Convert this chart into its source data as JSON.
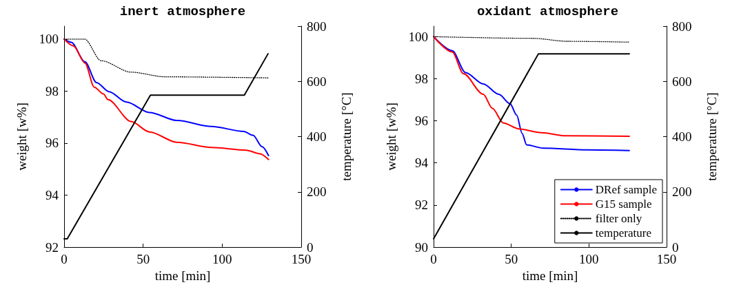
{
  "chart_data": [
    {
      "type": "line",
      "title": "inert atmosphere",
      "xlabel": "time [min]",
      "ylabel": "weight [w%]",
      "y2label": "temperature [°C]",
      "xlim": [
        0,
        150
      ],
      "xticks": [
        0,
        50,
        100,
        150
      ],
      "ylim": [
        92,
        100.5
      ],
      "yticks": [
        92,
        94,
        96,
        98,
        100
      ],
      "y2lim": [
        0,
        800
      ],
      "y2ticks": [
        0,
        200,
        400,
        600,
        800
      ],
      "grid": false,
      "legend": false,
      "marker": "none",
      "series": [
        {
          "color": "#0000ff",
          "line_style": "solid",
          "x": [
            0,
            4.5,
            13.2,
            20.5,
            28.4,
            39.4,
            54,
            71.5,
            93.3,
            113.7,
            119.5,
            125.3,
            129.3
          ],
          "values": [
            100,
            99.88,
            99.13,
            98.33,
            97.98,
            97.58,
            97.18,
            96.87,
            96.64,
            96.45,
            96.3,
            95.86,
            95.52
          ]
        },
        {
          "color": "#ff0000",
          "line_style": "solid",
          "x": [
            0,
            5.9,
            13.2,
            19.1,
            24.9,
            27.8,
            42.4,
            54,
            71.5,
            93.3,
            115.2,
            123.9,
            129.3
          ],
          "values": [
            100,
            99.74,
            99.08,
            98.15,
            97.89,
            97.67,
            96.83,
            96.43,
            96.03,
            95.83,
            95.73,
            95.59,
            95.37
          ]
        },
        {
          "color": "#000000",
          "line_style": "dotted",
          "x": [
            0,
            13,
            23.4,
            42.4,
            64,
            129
          ],
          "values": [
            100,
            100,
            99.17,
            98.73,
            98.55,
            98.51
          ]
        },
        {
          "color": "#000000",
          "line_style": "solid",
          "axis": "y2",
          "x": [
            0,
            2,
            54.6,
            114,
            129
          ],
          "values": [
            30,
            30,
            550,
            550,
            700
          ]
        }
      ]
    },
    {
      "type": "line",
      "title": "oxidant atmosphere",
      "xlabel": "time [min]",
      "ylabel": "weight [w%]",
      "y2label": "temperature [°C]",
      "xlim": [
        0,
        150
      ],
      "xticks": [
        0,
        50,
        100,
        150
      ],
      "ylim": [
        90,
        100.5
      ],
      "yticks": [
        90,
        92,
        94,
        96,
        98,
        100
      ],
      "y2lim": [
        0,
        800
      ],
      "y2ticks": [
        0,
        200,
        400,
        600,
        800
      ],
      "grid": false,
      "legend": "bottom right",
      "marker": "none",
      "series": [
        {
          "name": "DRef sample",
          "color": "#0000ff",
          "line_style": "solid",
          "x": [
            0,
            12,
            20.6,
            32,
            42,
            49.2,
            53.5,
            57,
            59.9,
            70.5,
            99.2,
            126
          ],
          "values": [
            100,
            99.33,
            98.29,
            97.75,
            97.26,
            96.82,
            96.27,
            95.4,
            94.86,
            94.7,
            94.62,
            94.59
          ]
        },
        {
          "name": "G15 sample",
          "color": "#ff0000",
          "line_style": "solid",
          "x": [
            0,
            12,
            19.2,
            32,
            37.8,
            44.9,
            54.9,
            69.2,
            84.9,
            126
          ],
          "values": [
            100,
            99.27,
            98.24,
            97.26,
            96.6,
            95.9,
            95.62,
            95.44,
            95.29,
            95.27
          ]
        },
        {
          "name": "filter only",
          "color": "#000000",
          "line_style": "dotted",
          "x": [
            0,
            64.3,
            86,
            126
          ],
          "values": [
            100,
            99.92,
            99.78,
            99.74
          ]
        },
        {
          "name": "temperature",
          "color": "#000000",
          "line_style": "solid",
          "axis": "y2",
          "x": [
            0,
            67.5,
            126
          ],
          "values": [
            30,
            700,
            700
          ]
        }
      ]
    }
  ]
}
